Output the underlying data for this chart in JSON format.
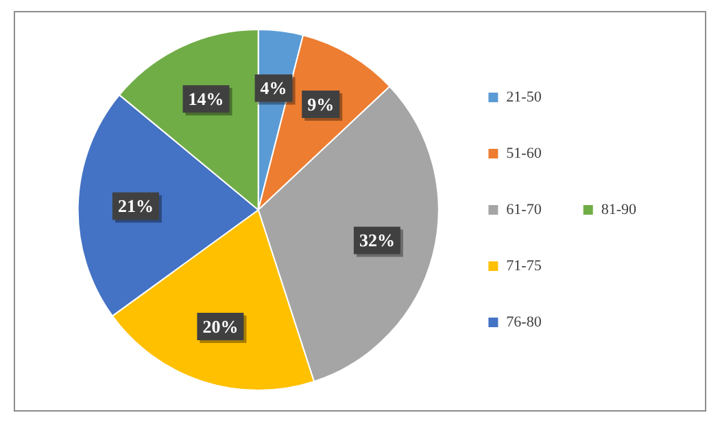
{
  "chart_data": {
    "type": "pie",
    "categories": [
      "21-50",
      "51-60",
      "61-70",
      "71-75",
      "76-80",
      "81-90"
    ],
    "values": [
      4,
      9,
      32,
      20,
      21,
      14
    ],
    "colors": [
      "#5b9bd5",
      "#ed7d31",
      "#a5a5a5",
      "#ffc000",
      "#4472c4",
      "#70ad47"
    ],
    "value_labels": [
      "4%",
      "9%",
      "32%",
      "20%",
      "21%",
      "14%"
    ],
    "legend": "right"
  }
}
